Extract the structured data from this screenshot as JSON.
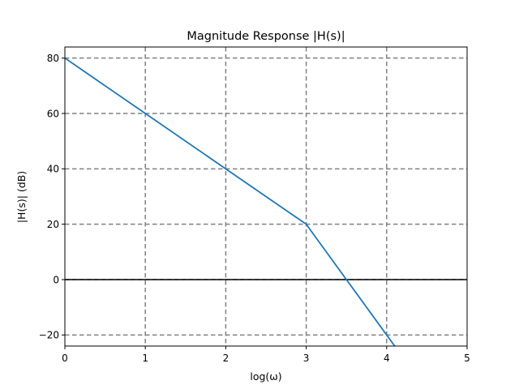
{
  "chart_data": {
    "type": "line",
    "title": "Magnitude Response |H(s)|",
    "xlabel": "log(ω)",
    "ylabel": "|H(s)| (dB)",
    "xlim": [
      0,
      5
    ],
    "ylim": [
      -24,
      84
    ],
    "xticks": [
      0,
      1,
      2,
      3,
      4,
      5
    ],
    "yticks": [
      -20,
      0,
      20,
      40,
      60,
      80
    ],
    "xtick_labels": [
      "0",
      "1",
      "2",
      "3",
      "4",
      "5"
    ],
    "ytick_labels": [
      "−20",
      "0",
      "20",
      "40",
      "60",
      "80"
    ],
    "grid": true,
    "reference_line": {
      "y": 0,
      "color": "#000000"
    },
    "series": [
      {
        "color": "#1f77b4",
        "x": [
          0,
          1,
          2,
          3,
          4,
          4.1
        ],
        "y": [
          80,
          60,
          40,
          20,
          -20,
          -24
        ]
      }
    ]
  }
}
